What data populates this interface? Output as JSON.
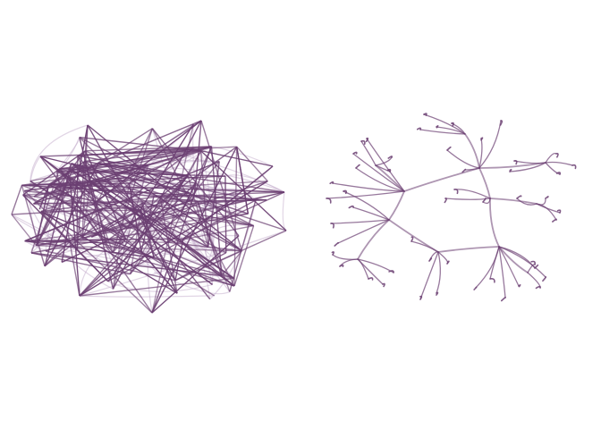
{
  "colors": {
    "background": "#ffffff",
    "edge": "#6b3f72",
    "edge_light": "#c9b3cf"
  },
  "panels": [
    {
      "id": "left",
      "kind": "dense-random-graph",
      "label": ""
    },
    {
      "id": "right",
      "kind": "bundled-tree",
      "label": ""
    }
  ]
}
